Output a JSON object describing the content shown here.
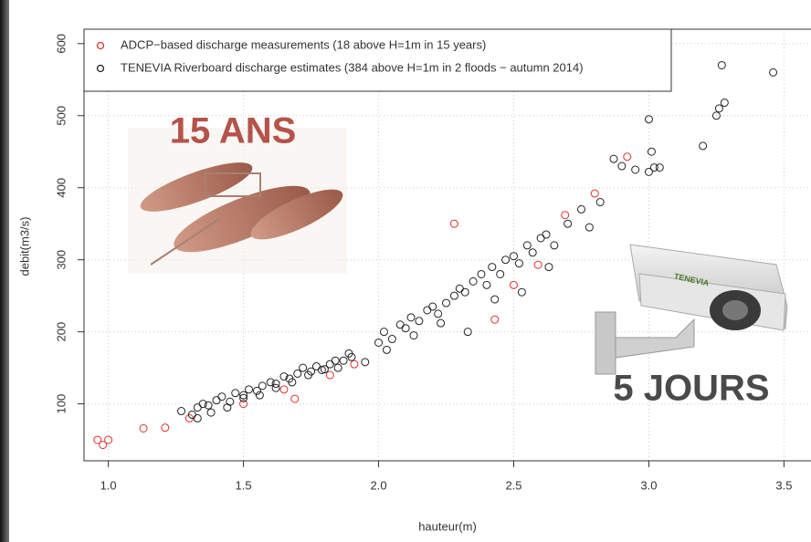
{
  "chart_data": {
    "type": "scatter",
    "xlabel": "hauteur(m)",
    "ylabel": "debit(m3/s)",
    "xlim": [
      0.91,
      3.6
    ],
    "ylim": [
      21,
      620
    ],
    "xticks": [
      {
        "value": 1,
        "label": "1.0"
      },
      1.5,
      {
        "value": 2,
        "label": "2.0"
      },
      2.5,
      {
        "value": 3,
        "label": "3.0"
      },
      3.5
    ],
    "yticks": [
      100,
      200,
      300,
      400,
      500,
      600
    ],
    "grid": true,
    "legend": "top-left",
    "annotations": [
      "15 ANS",
      "5 JOURS",
      "TENEVIA"
    ],
    "series": [
      {
        "name": "ADCP−based discharge measurements (18 above H=1m in 15 years)",
        "color": "#e03030",
        "x": [
          0.96,
          0.98,
          1.0,
          1.13,
          1.21,
          1.3,
          1.5,
          1.65,
          1.69,
          1.82,
          1.91,
          2.28,
          2.43,
          2.5,
          2.59,
          2.69,
          2.8,
          2.92
        ],
        "values": [
          50,
          43,
          50,
          66,
          67,
          80,
          100,
          120,
          107,
          140,
          155,
          350,
          217,
          265,
          293,
          362,
          392,
          443
        ]
      },
      {
        "name": "TENEVIA Riverboard discharge estimates (384 above H=1m in 2 floods − autumn 2014)",
        "color": "#222222",
        "x": [
          1.27,
          1.31,
          1.33,
          1.35,
          1.37,
          1.4,
          1.42,
          1.45,
          1.47,
          1.5,
          1.52,
          1.55,
          1.57,
          1.6,
          1.62,
          1.65,
          1.67,
          1.7,
          1.72,
          1.75,
          1.77,
          1.8,
          1.82,
          1.85,
          1.87,
          1.9,
          1.95,
          2.0,
          2.02,
          2.05,
          2.08,
          2.1,
          2.12,
          2.15,
          2.18,
          2.2,
          2.22,
          2.25,
          2.28,
          2.3,
          2.32,
          2.35,
          2.38,
          2.4,
          2.42,
          2.45,
          2.47,
          2.5,
          2.52,
          2.55,
          2.57,
          2.6,
          2.62,
          2.65,
          2.7,
          2.75,
          2.78,
          2.82,
          2.87,
          2.9,
          2.95,
          3.0,
          3.0,
          3.01,
          3.02,
          3.04,
          3.2,
          3.25,
          3.26,
          3.27,
          3.28,
          3.46,
          1.33,
          1.38,
          1.44,
          1.5,
          1.56,
          1.62,
          1.68,
          1.74,
          1.79,
          1.84,
          1.89,
          2.03,
          2.13,
          2.23,
          2.33,
          2.43,
          2.53,
          2.63
        ],
        "values": [
          90,
          85,
          95,
          100,
          98,
          105,
          110,
          103,
          115,
          112,
          120,
          118,
          125,
          130,
          128,
          138,
          135,
          142,
          150,
          145,
          152,
          148,
          155,
          150,
          160,
          165,
          158,
          185,
          200,
          190,
          210,
          205,
          220,
          215,
          230,
          235,
          225,
          240,
          250,
          260,
          255,
          270,
          280,
          265,
          290,
          280,
          300,
          305,
          295,
          320,
          310,
          330,
          335,
          320,
          350,
          370,
          345,
          380,
          440,
          430,
          425,
          422,
          495,
          450,
          428,
          428,
          458,
          500,
          510,
          570,
          518,
          560,
          80,
          88,
          95,
          108,
          112,
          122,
          130,
          140,
          147,
          160,
          170,
          175,
          195,
          212,
          200,
          245,
          255,
          290
        ]
      }
    ]
  }
}
